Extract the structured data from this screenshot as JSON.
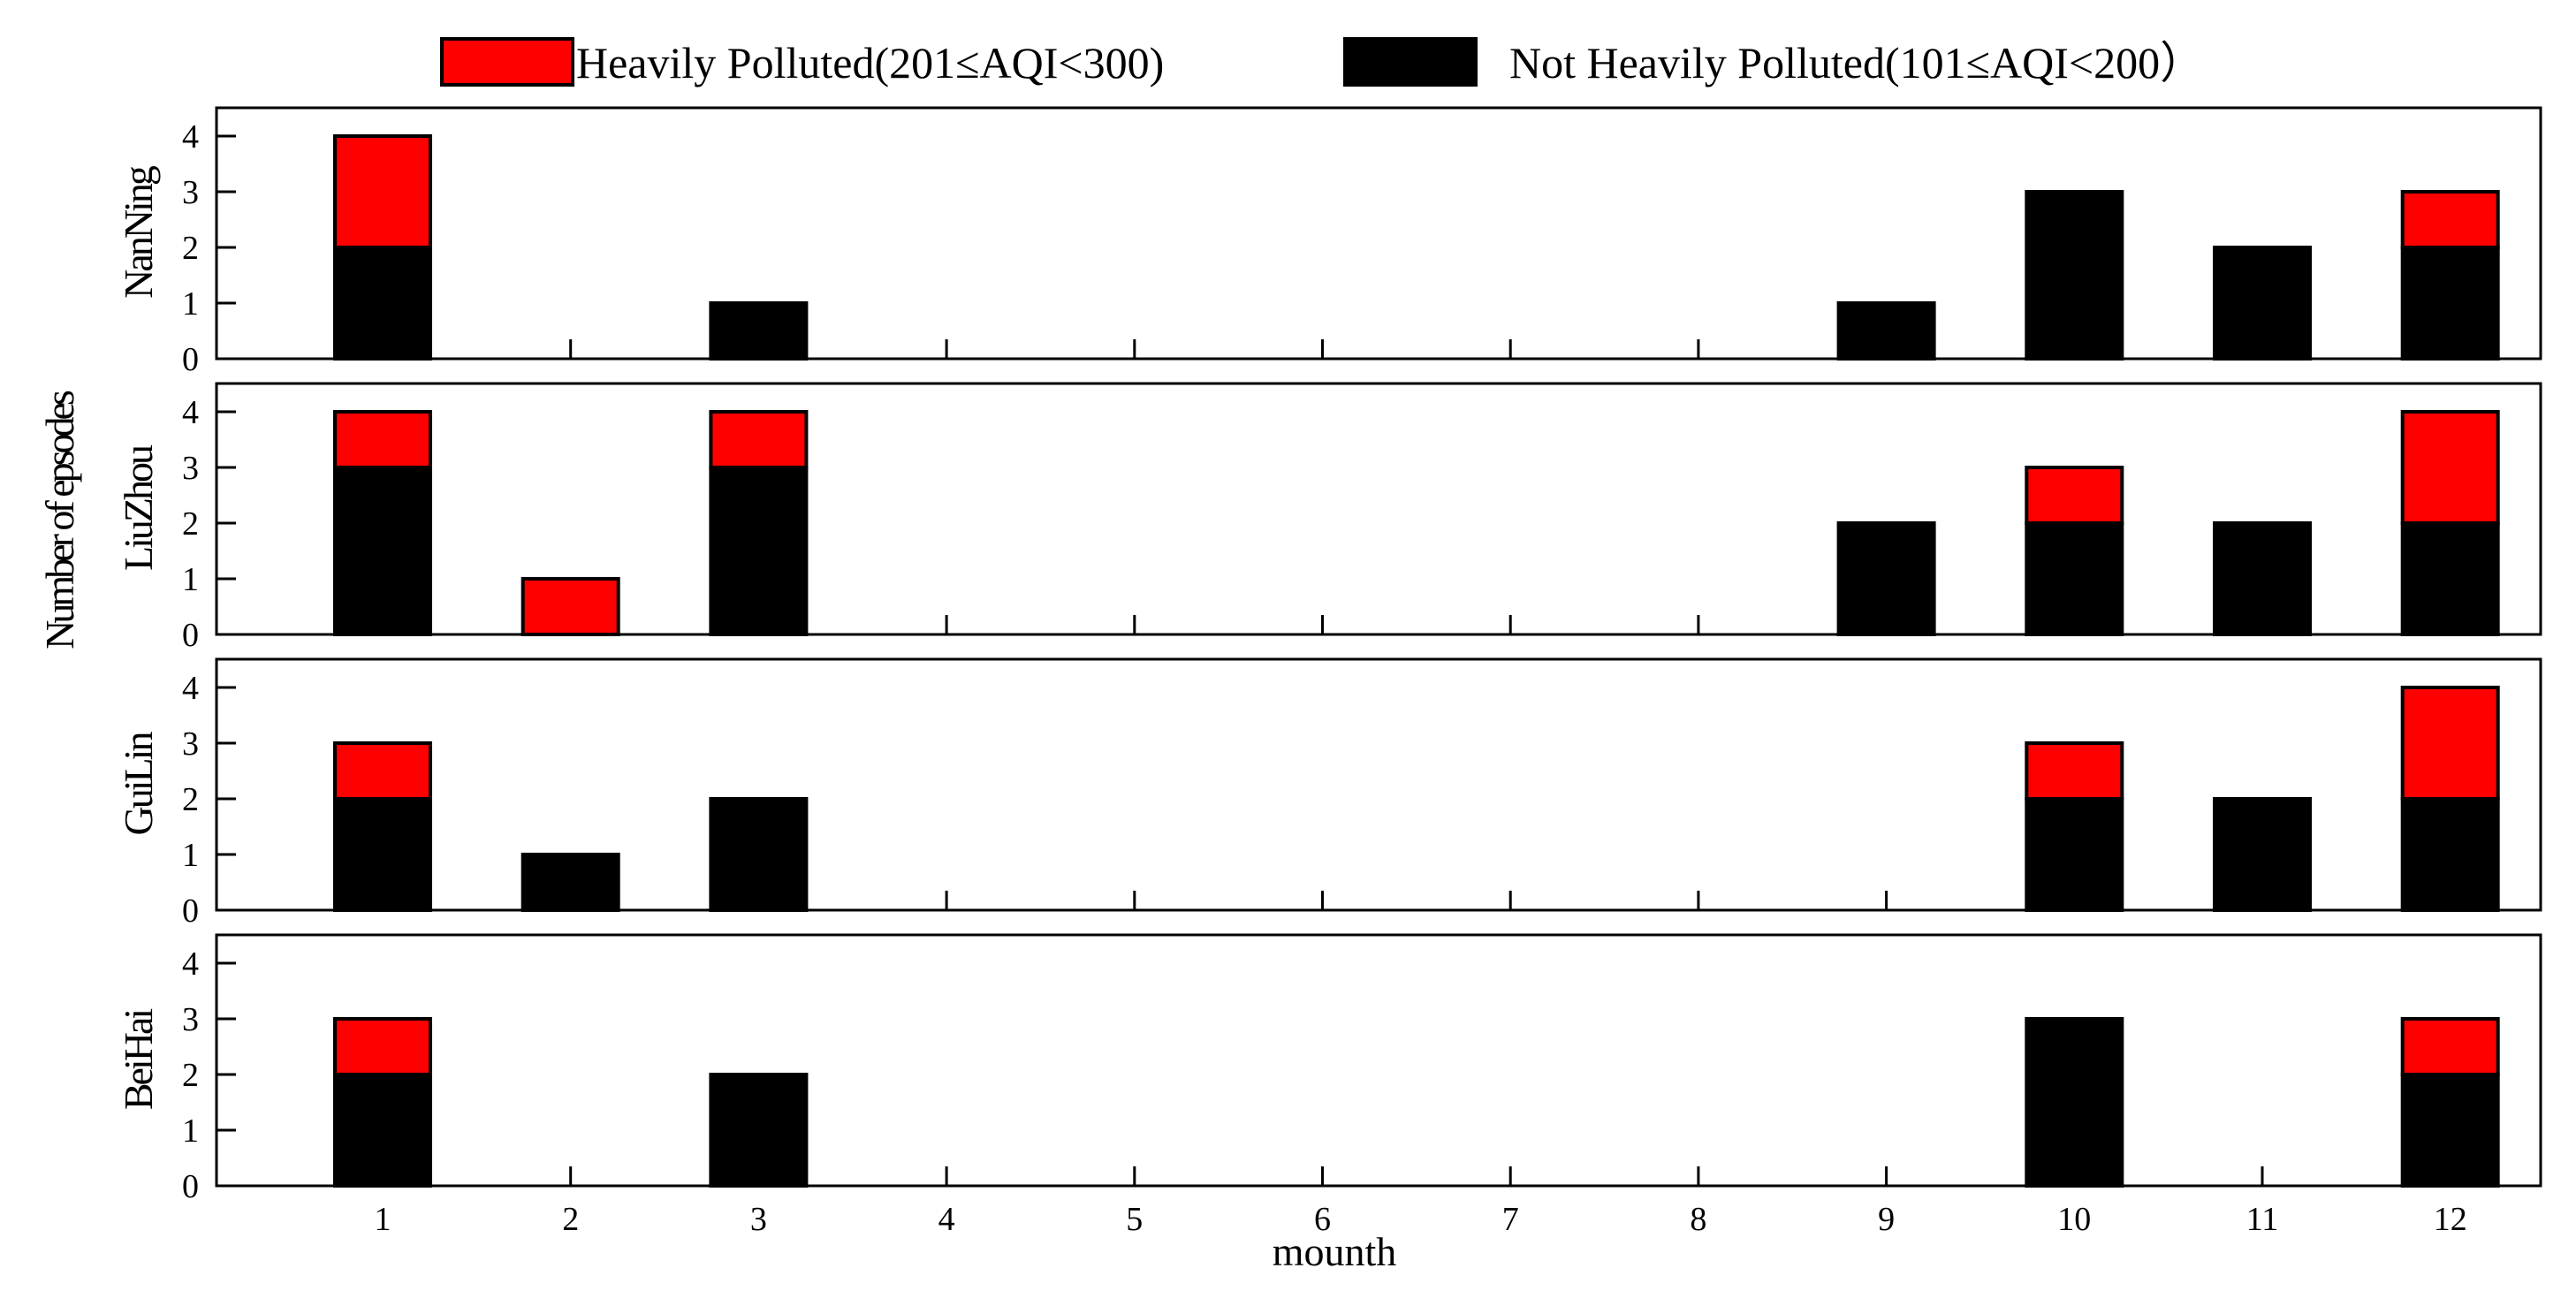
{
  "chart_data": {
    "type": "bar",
    "stacked": true,
    "xlabel": "mounth",
    "ylabel": "Number of epsodes",
    "ylim": [
      0,
      4.5
    ],
    "yticks": [
      "0",
      "1",
      "2",
      "3",
      "4"
    ],
    "categories": [
      "1",
      "2",
      "3",
      "4",
      "5",
      "6",
      "7",
      "8",
      "9",
      "10",
      "11",
      "12"
    ],
    "legend": {
      "position": "top",
      "entries": [
        {
          "label": "Heavily Polluted(201≤AQI<300)",
          "color": "#ff0000"
        },
        {
          "label": "Not Heavily Polluted(101≤AQI<200）",
          "color": "#000000"
        }
      ]
    },
    "series_names": [
      "Not Heavily Polluted(101≤AQI<200）",
      "Heavily Polluted(201≤AQI<300)"
    ],
    "colors": {
      "not_heavy": "#000000",
      "heavy": "#ff0000"
    },
    "panels": [
      {
        "title": "NanNing",
        "not_heavy": [
          2,
          0,
          1,
          0,
          0,
          0,
          0,
          0,
          1,
          3,
          2,
          2
        ],
        "heavy": [
          2,
          0,
          0,
          0,
          0,
          0,
          0,
          0,
          0,
          0,
          0,
          1
        ]
      },
      {
        "title": "LiuZhou",
        "not_heavy": [
          3,
          0,
          3,
          0,
          0,
          0,
          0,
          0,
          2,
          2,
          2,
          2
        ],
        "heavy": [
          1,
          1,
          1,
          0,
          0,
          0,
          0,
          0,
          0,
          1,
          0,
          2
        ]
      },
      {
        "title": "GuiLin",
        "not_heavy": [
          2,
          1,
          2,
          0,
          0,
          0,
          0,
          0,
          0,
          2,
          2,
          2
        ],
        "heavy": [
          1,
          0,
          0,
          0,
          0,
          0,
          0,
          0,
          0,
          1,
          0,
          2
        ]
      },
      {
        "title": "BeiHai",
        "not_heavy": [
          2,
          0,
          2,
          0,
          0,
          0,
          0,
          0,
          0,
          3,
          0,
          2
        ],
        "heavy": [
          1,
          0,
          0,
          0,
          0,
          0,
          0,
          0,
          0,
          0,
          0,
          1
        ]
      }
    ]
  }
}
